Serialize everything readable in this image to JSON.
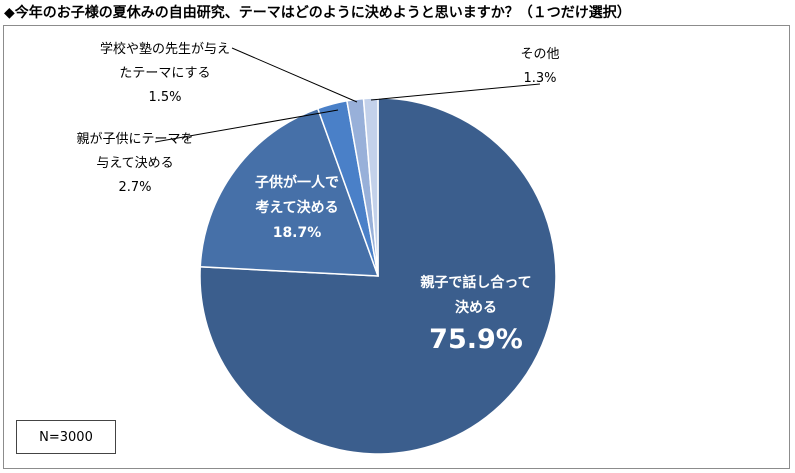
{
  "title": "◆今年のお子様の夏休みの自由研究、テーマはどのように決めようと思いますか？（１つだけ選択）",
  "sample_size": "N=3000",
  "chart_data": {
    "type": "pie",
    "title": "◆今年のお子様の夏休みの自由研究、テーマはどのように決めようと思いますか？（１つだけ選択）",
    "slices": [
      {
        "label_lines": [
          "親子で話し合って",
          "決める"
        ],
        "value": 75.9,
        "value_label": "75.9%",
        "color": "#3b5e8d",
        "label_pos": "inside"
      },
      {
        "label_lines": [
          "子供が一人で",
          "考えて決める"
        ],
        "value": 18.7,
        "value_label": "18.7%",
        "color": "#4670a8",
        "label_pos": "inside"
      },
      {
        "label_lines": [
          "親が子供にテーマを",
          "与えて決める"
        ],
        "value": 2.7,
        "value_label": "2.7%",
        "color": "#4a80c8",
        "label_pos": "outside"
      },
      {
        "label_lines": [
          "学校や塾の先生が与え",
          "たテーマにする"
        ],
        "value": 1.5,
        "value_label": "1.5%",
        "color": "#98b0d9",
        "label_pos": "outside"
      },
      {
        "label_lines": [
          "その他"
        ],
        "value": 1.3,
        "value_label": "1.3%",
        "color": "#c3d1ea",
        "label_pos": "outside"
      }
    ],
    "start": "12 o'clock",
    "direction": "clockwise",
    "legend": "none"
  }
}
